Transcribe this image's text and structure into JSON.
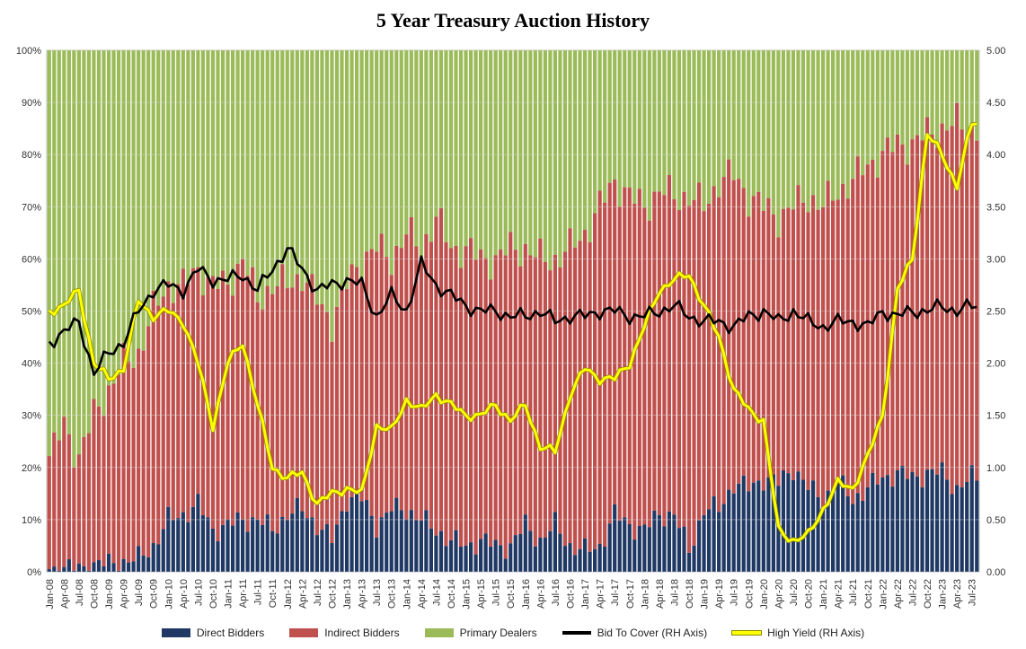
{
  "chart_data": {
    "type": "bar",
    "stacked": true,
    "title": "5 Year Treasury Auction History",
    "left_axis": {
      "min": 0,
      "max": 100,
      "ticks": [
        "0%",
        "10%",
        "20%",
        "30%",
        "40%",
        "50%",
        "60%",
        "70%",
        "80%",
        "90%",
        "100%"
      ]
    },
    "right_axis": {
      "min": 0,
      "max": 5,
      "ticks": [
        "0.00",
        "0.50",
        "1.00",
        "1.50",
        "2.00",
        "2.50",
        "3.00",
        "3.50",
        "4.00",
        "4.50",
        "5.00"
      ]
    },
    "start": {
      "year": 2008,
      "month": 1
    },
    "x_tick_labels": [
      "Jan-08",
      "Apr-08",
      "Jul-08",
      "Oct-08",
      "Jan-09",
      "Apr-09",
      "Jul-09",
      "Oct-09",
      "Jan-10",
      "Apr-10",
      "Jul-10",
      "Oct-10",
      "Jan-11",
      "Apr-11",
      "Jul-11",
      "Oct-11",
      "Jan-12",
      "Apr-12",
      "Jul-12",
      "Oct-12",
      "Jan-13",
      "Apr-13",
      "Jul-13",
      "Oct-13",
      "Jan-14",
      "Apr-14",
      "Jul-14",
      "Oct-14",
      "Jan-15",
      "Apr-15",
      "Jul-15",
      "Oct-15",
      "Jan-16",
      "Apr-16",
      "Jul-16",
      "Oct-16",
      "Jan-17",
      "Apr-17",
      "Jul-17",
      "Oct-17",
      "Jan-18",
      "Apr-18",
      "Jul-18",
      "Oct-18",
      "Jan-19",
      "Apr-19",
      "Jul-19",
      "Oct-19",
      "Jan-20",
      "Apr-20",
      "Jul-20",
      "Oct-20",
      "Jan-21",
      "Apr-21",
      "Jul-21",
      "Oct-21",
      "Jan-22",
      "Apr-22",
      "Jul-22",
      "Oct-22",
      "Jan-23",
      "Apr-23",
      "Jul-23"
    ],
    "legend": {
      "direct": "Direct Bidders",
      "indirect": "Indirect Bidders",
      "dealers": "Primary Dealers",
      "btc": "Bid To Cover (RH Axis)",
      "yield": "High Yield (RH Axis)"
    },
    "colors": {
      "direct": "#1f3864",
      "indirect": "#c0504d",
      "dealers": "#9bbb59",
      "btc": "#000000",
      "yield": "#ffff00",
      "yield_outline": "#8a8a00"
    },
    "grid": true,
    "legend_position": "bottom",
    "direct_pct_by_quarter": [
      0.5,
      0.8,
      0.5,
      1.5,
      1.5,
      2,
      2.5,
      5,
      10,
      11,
      13,
      8,
      9,
      10,
      10,
      8,
      11,
      12,
      9,
      6,
      14,
      14,
      9,
      12,
      12,
      10,
      8,
      6,
      5,
      6,
      5,
      5,
      9,
      6,
      9,
      5,
      4,
      5,
      11,
      9,
      8,
      11,
      11,
      4,
      12,
      12,
      17,
      16,
      18,
      17,
      20,
      16,
      14,
      17,
      14,
      16,
      18,
      19,
      18,
      19,
      19,
      16,
      18
    ],
    "indirect_end_pct_by_quarter": [
      22,
      28,
      22,
      30,
      35,
      40,
      42,
      50,
      55,
      55,
      58,
      55,
      55,
      60,
      52,
      55,
      55,
      57,
      52,
      48,
      55,
      60,
      62,
      60,
      65,
      62,
      68,
      62,
      62,
      60,
      60,
      62,
      62,
      60,
      60,
      62,
      65,
      70,
      75,
      72,
      70,
      73,
      72,
      72,
      70,
      75,
      76,
      72,
      70,
      68,
      70,
      72,
      70,
      73,
      75,
      78,
      80,
      82,
      82,
      84,
      85,
      86,
      85
    ],
    "bid_to_cover_by_quarter": [
      2.2,
      2.3,
      2.4,
      1.9,
      2.1,
      2.2,
      2.5,
      2.7,
      2.75,
      2.7,
      2.9,
      2.8,
      2.8,
      2.85,
      2.7,
      2.9,
      3.1,
      2.9,
      2.7,
      2.75,
      2.8,
      2.75,
      2.45,
      2.65,
      2.5,
      2.95,
      2.75,
      2.65,
      2.55,
      2.5,
      2.5,
      2.45,
      2.45,
      2.5,
      2.4,
      2.45,
      2.45,
      2.5,
      2.5,
      2.45,
      2.45,
      2.5,
      2.55,
      2.45,
      2.4,
      2.4,
      2.35,
      2.45,
      2.5,
      2.4,
      2.5,
      2.4,
      2.35,
      2.4,
      2.4,
      2.35,
      2.5,
      2.45,
      2.5,
      2.5,
      2.55,
      2.5,
      2.55
    ],
    "high_yield_by_quarter": [
      2.5,
      2.55,
      2.7,
      2.0,
      1.85,
      1.95,
      2.6,
      2.45,
      2.5,
      2.4,
      2.0,
      1.4,
      2.0,
      2.2,
      1.6,
      1.0,
      0.9,
      0.95,
      0.65,
      0.75,
      0.8,
      0.75,
      1.4,
      1.35,
      1.65,
      1.55,
      1.7,
      1.6,
      1.5,
      1.5,
      1.6,
      1.45,
      1.6,
      1.2,
      1.15,
      1.7,
      1.95,
      1.85,
      1.85,
      2.0,
      2.35,
      2.7,
      2.8,
      2.85,
      2.55,
      2.25,
      1.75,
      1.55,
      1.45,
      0.4,
      0.3,
      0.35,
      0.6,
      0.85,
      0.8,
      1.1,
      1.5,
      2.7,
      3.0,
      4.2,
      4.0,
      3.7,
      4.3
    ]
  }
}
